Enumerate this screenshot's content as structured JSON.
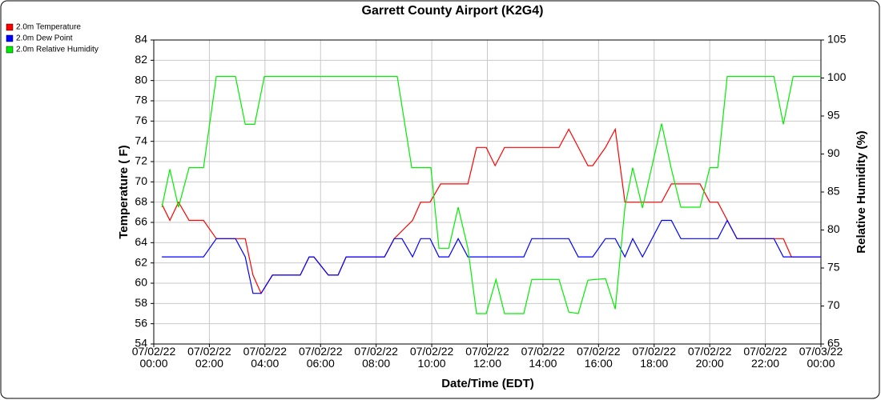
{
  "chart_data": {
    "type": "line",
    "title": "Garrett County Airport (K2G4)",
    "xlabel": "Date/Time (EDT)",
    "ylabel": "Temperature ( F)",
    "y2label": "Relative Humidity (%)",
    "xlim": [
      0,
      24
    ],
    "xticks": [
      {
        "value": 0,
        "label": "07/02/22\n00:00"
      },
      {
        "value": 2,
        "label": "07/02/22\n02:00"
      },
      {
        "value": 4,
        "label": "07/02/22\n04:00"
      },
      {
        "value": 6,
        "label": "07/02/22\n06:00"
      },
      {
        "value": 8,
        "label": "07/02/22\n08:00"
      },
      {
        "value": 10,
        "label": "07/02/22\n10:00"
      },
      {
        "value": 12,
        "label": "07/02/22\n12:00"
      },
      {
        "value": 14,
        "label": "07/02/22\n14:00"
      },
      {
        "value": 16,
        "label": "07/02/22\n16:00"
      },
      {
        "value": 18,
        "label": "07/02/22\n18:00"
      },
      {
        "value": 20,
        "label": "07/02/22\n20:00"
      },
      {
        "value": 22,
        "label": "07/02/22\n22:00"
      },
      {
        "value": 24,
        "label": "07/03/22\n00:00"
      }
    ],
    "ylim": [
      54,
      84
    ],
    "yticks": [
      54,
      56,
      58,
      60,
      62,
      64,
      66,
      68,
      70,
      72,
      74,
      76,
      78,
      80,
      82,
      84
    ],
    "y2lim": [
      65,
      105
    ],
    "y2ticks": [
      65,
      70,
      75,
      80,
      85,
      90,
      95,
      100,
      105
    ],
    "grid": true,
    "legend": "top-left",
    "series": [
      {
        "name": "2.0m Temperature",
        "color": "#ff0000",
        "x": [
          0.29,
          0.58,
          0.89,
          1.27,
          1.79,
          2.25,
          3.29,
          3.57,
          3.86,
          4.27,
          5.27,
          5.59,
          5.76,
          6.28,
          6.63,
          6.92,
          8.3,
          8.65,
          9.31,
          9.6,
          9.94,
          10.32,
          11.3,
          11.61,
          11.96,
          12.28,
          12.62,
          14.58,
          14.93,
          15.62,
          15.79,
          16.25,
          16.6,
          16.95,
          18.27,
          18.62,
          19.65,
          20.0,
          20.29,
          20.98,
          22.65,
          22.94,
          24
        ],
        "values": [
          67.8,
          66.2,
          68,
          66.2,
          66.2,
          64.4,
          64.4,
          60.8,
          59,
          60.8,
          60.8,
          62.6,
          62.6,
          60.8,
          60.8,
          62.6,
          62.6,
          64.4,
          66.2,
          68,
          68,
          69.8,
          69.8,
          73.4,
          73.4,
          71.6,
          73.4,
          73.4,
          75.2,
          71.6,
          71.6,
          73.4,
          75.2,
          68,
          68,
          69.8,
          69.8,
          68,
          68,
          64.4,
          64.4,
          62.6,
          62.6
        ]
      },
      {
        "name": "2.0m Dew Point",
        "color": "#0000ff",
        "x": [
          0.29,
          1.79,
          2.25,
          2.94,
          3.29,
          3.57,
          3.86,
          4.27,
          5.27,
          5.59,
          5.76,
          6.28,
          6.63,
          6.92,
          8.3,
          8.65,
          8.93,
          9.31,
          9.6,
          9.94,
          10.26,
          10.61,
          10.95,
          11.3,
          13.31,
          13.6,
          14.93,
          15.27,
          15.79,
          16.25,
          16.6,
          16.95,
          17.23,
          17.58,
          18.27,
          18.62,
          18.96,
          20.29,
          20.63,
          20.98,
          22.31,
          22.65,
          24
        ],
        "values": [
          62.6,
          62.6,
          64.4,
          64.4,
          62.6,
          59,
          59,
          60.8,
          60.8,
          62.6,
          62.6,
          60.8,
          60.8,
          62.6,
          62.6,
          64.4,
          64.4,
          62.6,
          64.4,
          64.4,
          62.6,
          62.6,
          64.4,
          62.6,
          62.6,
          64.4,
          64.4,
          62.6,
          62.6,
          64.4,
          64.4,
          62.6,
          64.4,
          62.6,
          66.2,
          66.2,
          64.4,
          64.4,
          66.2,
          64.4,
          64.4,
          62.6,
          62.6
        ]
      },
      {
        "name": "2.0m Relative Humidity",
        "color": "#00ee00",
        "axis": "y2",
        "x": [
          0.29,
          0.58,
          0.89,
          1.27,
          1.79,
          2.25,
          2.94,
          3.29,
          3.63,
          3.98,
          8.76,
          9.28,
          9.97,
          10.26,
          10.61,
          10.95,
          11.3,
          11.61,
          11.96,
          12.31,
          12.62,
          13.31,
          13.6,
          14.58,
          14.93,
          15.27,
          15.62,
          16.25,
          16.6,
          16.95,
          17.23,
          17.58,
          18.27,
          18.62,
          18.96,
          19.65,
          20.0,
          20.29,
          20.63,
          22.31,
          22.65,
          23.0,
          24
        ],
        "values": [
          83,
          88,
          83,
          88.2,
          88.2,
          100.2,
          100.2,
          93.9,
          93.9,
          100.2,
          100.2,
          88.2,
          88.2,
          77.6,
          77.6,
          83,
          77.6,
          69,
          69,
          73.5,
          69,
          69,
          73.5,
          73.5,
          69.2,
          69,
          73.4,
          73.6,
          69.6,
          83,
          88.2,
          82.9,
          94,
          88,
          83,
          83,
          88.2,
          88.2,
          100.2,
          100.2,
          93.9,
          100.2,
          100.2
        ]
      }
    ]
  }
}
